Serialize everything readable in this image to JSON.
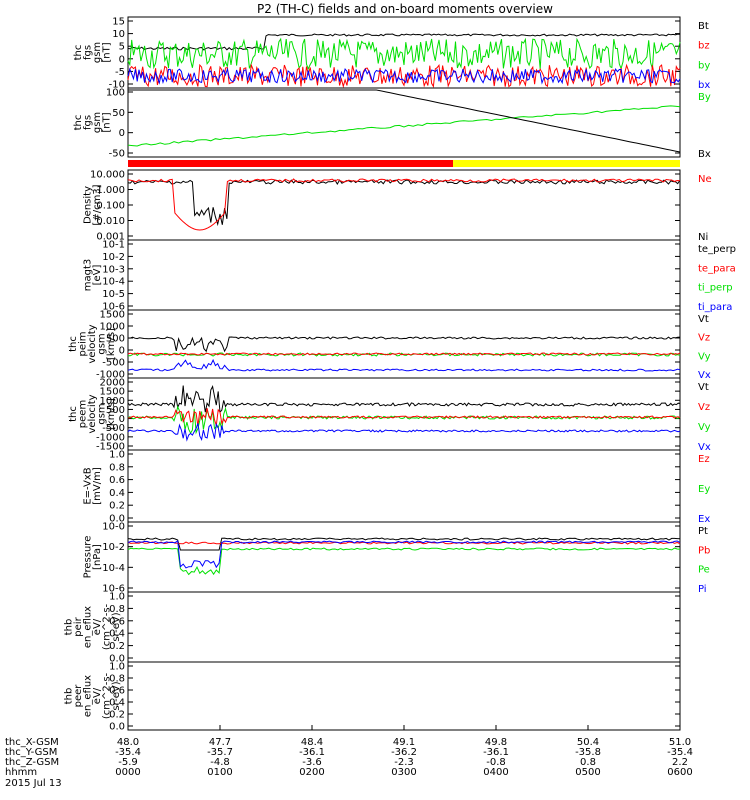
{
  "title": "P2 (TH-C) fields and on-board moments overview",
  "colors": {
    "black": "#000000",
    "red": "#ff0000",
    "green": "#00e000",
    "blue": "#0000ff",
    "yellow": "#ffff00"
  },
  "time_axis": {
    "ticks": [
      "0000",
      "0100",
      "0200",
      "0300",
      "0400",
      "0500",
      "0600"
    ],
    "date": "2015 Jul 13",
    "rows": [
      {
        "label": "thc_X-GSM",
        "values": [
          "48.0",
          "47.7",
          "48.4",
          "49.1",
          "49.8",
          "50.4",
          "51.0"
        ]
      },
      {
        "label": "thc_Y-GSM",
        "values": [
          "-35.4",
          "-35.7",
          "-36.1",
          "-36.2",
          "-36.1",
          "-35.8",
          "-35.4"
        ]
      },
      {
        "label": "thc_Z-GSM",
        "values": [
          "-5.9",
          "-4.8",
          "-3.6",
          "-2.3",
          "-0.8",
          "0.8",
          "2.2"
        ]
      },
      {
        "label": "hhmm",
        "values": [
          "0000",
          "0100",
          "0200",
          "0300",
          "0400",
          "0500",
          "0600"
        ]
      }
    ]
  },
  "chart_data": [
    {
      "type": "line",
      "ylabel": [
        "thc",
        "fgs",
        "gsm",
        "[nT]"
      ],
      "yticks": [
        "15",
        "10",
        "5",
        "0",
        "-5",
        "-10"
      ],
      "ylim": [
        -10,
        15
      ],
      "legend": [
        {
          "name": "Bt",
          "color": "black"
        },
        {
          "name": "bz",
          "color": "red"
        },
        {
          "name": "by",
          "color": "green"
        },
        {
          "name": "bx",
          "color": "blue"
        }
      ]
    },
    {
      "type": "line",
      "ylabel": [
        "thc",
        "fgs",
        "gsm",
        "[nT]"
      ],
      "yticks": [
        "100",
        "50",
        "0",
        "-50"
      ],
      "ylim": [
        -60,
        100
      ],
      "legend": [
        {
          "name": "By",
          "color": "green"
        },
        {
          "name": "Bx",
          "color": "black"
        }
      ]
    },
    {
      "type": "line",
      "ylabel": [
        "Density",
        "[#/cm3]"
      ],
      "yticks": [
        "10.000",
        "1.000",
        "0.100",
        "0.010",
        "0.001"
      ],
      "scale": "log",
      "legend": [
        {
          "name": "Ne",
          "color": "red"
        },
        {
          "name": "Ni",
          "color": "black"
        }
      ]
    },
    {
      "type": "line",
      "ylabel": [
        "magt3",
        "[eV]"
      ],
      "yticks": [
        "10-1",
        "10-2",
        "10-3",
        "10-4",
        "10-5",
        "10-6"
      ],
      "scale": "log",
      "legend": [
        {
          "name": "te_perp",
          "color": "black"
        },
        {
          "name": "te_para",
          "color": "red"
        },
        {
          "name": "ti_perp",
          "color": "green"
        },
        {
          "name": "ti_para",
          "color": "blue"
        }
      ]
    },
    {
      "type": "line",
      "ylabel": [
        "thc",
        "peim",
        "velocity",
        "gsm",
        "[km/s]"
      ],
      "yticks": [
        "1500",
        "1000",
        "500",
        "0",
        "-500",
        "-1000"
      ],
      "ylim": [
        -1000,
        1500
      ],
      "legend": [
        {
          "name": "Vt",
          "color": "black"
        },
        {
          "name": "Vz",
          "color": "red"
        },
        {
          "name": "Vy",
          "color": "green"
        },
        {
          "name": "Vx",
          "color": "blue"
        }
      ]
    },
    {
      "type": "line",
      "ylabel": [
        "thc",
        "peem",
        "velocity",
        "gsm",
        "[km/s]"
      ],
      "yticks": [
        "2000",
        "1500",
        "1000",
        "500",
        "0",
        "-500",
        "-1000",
        "-1500"
      ],
      "ylim": [
        -1500,
        2000
      ],
      "legend": [
        {
          "name": "Vt",
          "color": "black"
        },
        {
          "name": "Vz",
          "color": "red"
        },
        {
          "name": "Vy",
          "color": "green"
        },
        {
          "name": "Vx",
          "color": "blue"
        }
      ]
    },
    {
      "type": "line",
      "ylabel": [
        "E=-VxB",
        "[mV/m]"
      ],
      "yticks": [
        "1.0",
        "0.8",
        "0.6",
        "0.4",
        "0.2",
        "0.0"
      ],
      "ylim": [
        0,
        1
      ],
      "legend": [
        {
          "name": "Ez",
          "color": "red"
        },
        {
          "name": "Ey",
          "color": "green"
        },
        {
          "name": "Ex",
          "color": "blue"
        }
      ]
    },
    {
      "type": "line",
      "ylabel": [
        "Pressure",
        "[nPa]"
      ],
      "yticks": [
        "10-0",
        "10-2",
        "10-4",
        "10-6"
      ],
      "scale": "log",
      "legend": [
        {
          "name": "Pt",
          "color": "black"
        },
        {
          "name": "Pb",
          "color": "red"
        },
        {
          "name": "Pe",
          "color": "green"
        },
        {
          "name": "Pi",
          "color": "blue"
        }
      ]
    },
    {
      "type": "line",
      "ylabel": [
        "thb",
        "peir",
        "en_eflux",
        "eV/",
        "(cm^2-s-",
        "sr-eV)"
      ],
      "yticks": [
        "1.0",
        "0.8",
        "0.6",
        "0.4",
        "0.2",
        "0.0"
      ],
      "ylim": [
        0,
        1
      ],
      "legend": []
    },
    {
      "type": "line",
      "ylabel": [
        "thb",
        "peer",
        "en_eflux",
        "eV/",
        "(cm^2-s-",
        "sr-eV)"
      ],
      "yticks": [
        "1.0",
        "0.8",
        "0.6",
        "0.4",
        "0.2",
        "0.0"
      ],
      "ylim": [
        0,
        1
      ],
      "legend": []
    }
  ]
}
